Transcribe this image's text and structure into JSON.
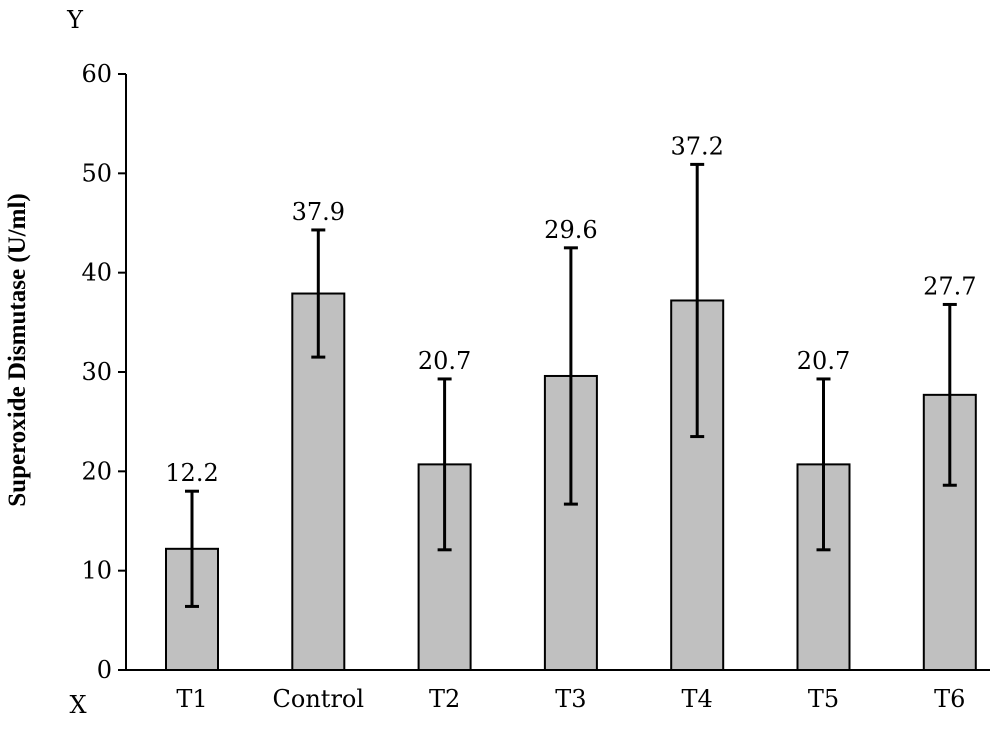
{
  "chart_data": {
    "type": "bar",
    "categories": [
      "T1",
      "Control",
      "T2",
      "T3",
      "T4",
      "T5",
      "T6"
    ],
    "values": [
      12.2,
      37.9,
      20.7,
      29.6,
      37.2,
      20.7,
      27.7
    ],
    "error_low": [
      6.4,
      31.5,
      12.1,
      16.7,
      23.5,
      12.1,
      18.6
    ],
    "error_high": [
      18.0,
      44.3,
      29.3,
      42.5,
      50.9,
      29.3,
      36.8
    ],
    "data_labels": [
      "12.2",
      "37.9",
      "20.7",
      "29.6",
      "37.2",
      "20.7",
      "27.7"
    ],
    "ylabel": "Superoxide Dismutase (U/ml)",
    "y_axis_letter": "Y",
    "x_axis_letter": "X",
    "ylim": [
      0,
      60
    ],
    "yticks": [
      0,
      10,
      20,
      30,
      40,
      50,
      60
    ],
    "grid": false,
    "bar_color": "#c0c0c0",
    "edge_color": "#000000"
  }
}
